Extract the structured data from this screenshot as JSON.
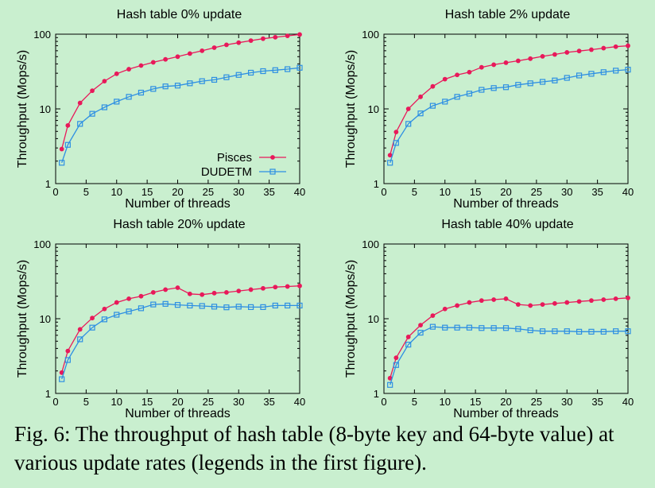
{
  "caption": "Fig. 6: The throughput of hash table (8-byte key and 64-byte value) at various update rates (legends in the first figure).",
  "colors": {
    "pisces": "#e8195a",
    "dudetm": "#2d8fe3",
    "background": "#c9efcf"
  },
  "chart_data": [
    {
      "type": "line",
      "title": "Hash table 0% update",
      "xlabel": "Number of threads",
      "ylabel": "Throughput (Mops/s)",
      "yscale": "log",
      "xlim": [
        0,
        40
      ],
      "ylim": [
        1,
        100
      ],
      "xticks": [
        0,
        5,
        10,
        15,
        20,
        25,
        30,
        35,
        40
      ],
      "yticks": [
        1,
        10,
        100
      ],
      "grid": false,
      "legend": {
        "placement": "inside-lower-right",
        "entries": [
          "Pisces",
          "DUDETM"
        ]
      },
      "x": [
        1,
        2,
        4,
        6,
        8,
        10,
        12,
        14,
        16,
        18,
        20,
        22,
        24,
        26,
        28,
        30,
        32,
        34,
        36,
        38,
        40
      ],
      "series": [
        {
          "name": "Pisces",
          "marker": "circle",
          "values": [
            2.9,
            6.0,
            12.0,
            17.5,
            23.5,
            29.5,
            34,
            38,
            42,
            46,
            50,
            55,
            60,
            66,
            72,
            77,
            82,
            87,
            91,
            95,
            99
          ]
        },
        {
          "name": "DUDETM",
          "marker": "square",
          "values": [
            1.9,
            3.3,
            6.3,
            8.6,
            10.5,
            12.5,
            14.5,
            16.5,
            18.5,
            20,
            20.5,
            22,
            23.5,
            24.5,
            26.5,
            28.5,
            30.5,
            32,
            33,
            34,
            35.5
          ]
        }
      ]
    },
    {
      "type": "line",
      "title": "Hash table 2% update",
      "xlabel": "Number of threads",
      "ylabel": "Throughput (Mops/s)",
      "yscale": "log",
      "xlim": [
        0,
        40
      ],
      "ylim": [
        1,
        100
      ],
      "xticks": [
        0,
        5,
        10,
        15,
        20,
        25,
        30,
        35,
        40
      ],
      "yticks": [
        1,
        10,
        100
      ],
      "grid": false,
      "x": [
        1,
        2,
        4,
        6,
        8,
        10,
        12,
        14,
        16,
        18,
        20,
        22,
        24,
        26,
        28,
        30,
        32,
        34,
        36,
        38,
        40
      ],
      "series": [
        {
          "name": "Pisces",
          "marker": "circle",
          "values": [
            2.4,
            4.9,
            10.0,
            14.5,
            20,
            25,
            28.5,
            31,
            36,
            39,
            41.5,
            44,
            47,
            50.5,
            53.5,
            57,
            59.5,
            62,
            65,
            68,
            70
          ]
        },
        {
          "name": "DUDETM",
          "marker": "square",
          "values": [
            1.9,
            3.5,
            6.3,
            8.7,
            11,
            12.5,
            14.5,
            16,
            18,
            19,
            19.5,
            21,
            22,
            23,
            24,
            26,
            28,
            29.5,
            31,
            32.5,
            33.5
          ]
        }
      ]
    },
    {
      "type": "line",
      "title": "Hash table 20% update",
      "xlabel": "Number of threads",
      "ylabel": "Throughput (Mops/s)",
      "yscale": "log",
      "xlim": [
        0,
        40
      ],
      "ylim": [
        1,
        100
      ],
      "xticks": [
        0,
        5,
        10,
        15,
        20,
        25,
        30,
        35,
        40
      ],
      "yticks": [
        1,
        10,
        100
      ],
      "grid": false,
      "x": [
        1,
        2,
        4,
        6,
        8,
        10,
        12,
        14,
        16,
        18,
        20,
        22,
        24,
        26,
        28,
        30,
        32,
        34,
        36,
        38,
        40
      ],
      "series": [
        {
          "name": "Pisces",
          "marker": "circle",
          "values": [
            1.9,
            3.7,
            7.2,
            10.2,
            13.5,
            16.5,
            18.5,
            20,
            22.5,
            24.5,
            26,
            21.5,
            21,
            22,
            22.5,
            23.5,
            24.5,
            25.5,
            26.5,
            27,
            27.5
          ]
        },
        {
          "name": "DUDETM",
          "marker": "square",
          "values": [
            1.55,
            2.8,
            5.3,
            7.6,
            9.8,
            11.3,
            12.5,
            13.8,
            15.5,
            15.8,
            15.3,
            15,
            14.8,
            14.5,
            14.2,
            14.5,
            14.3,
            14.3,
            15,
            15,
            15
          ]
        }
      ]
    },
    {
      "type": "line",
      "title": "Hash table 40% update",
      "xlabel": "Number of threads",
      "ylabel": "Throughput (Mops/s)",
      "yscale": "log",
      "xlim": [
        0,
        40
      ],
      "ylim": [
        1,
        100
      ],
      "xticks": [
        0,
        5,
        10,
        15,
        20,
        25,
        30,
        35,
        40
      ],
      "yticks": [
        1,
        10,
        100
      ],
      "grid": false,
      "x": [
        1,
        2,
        4,
        6,
        8,
        10,
        12,
        14,
        16,
        18,
        20,
        22,
        24,
        26,
        28,
        30,
        32,
        34,
        36,
        38,
        40
      ],
      "series": [
        {
          "name": "Pisces",
          "marker": "circle",
          "values": [
            1.6,
            3.0,
            5.7,
            8.2,
            11,
            13.5,
            15,
            16.5,
            17.5,
            18,
            18.5,
            15.5,
            15,
            15.5,
            16,
            16.5,
            17,
            17.5,
            18,
            18.5,
            19
          ]
        },
        {
          "name": "DUDETM",
          "marker": "square",
          "values": [
            1.3,
            2.4,
            4.5,
            6.5,
            7.8,
            7.6,
            7.6,
            7.6,
            7.5,
            7.5,
            7.5,
            7.3,
            7.0,
            6.8,
            6.8,
            6.8,
            6.7,
            6.7,
            6.7,
            6.8,
            6.8
          ]
        }
      ]
    }
  ]
}
